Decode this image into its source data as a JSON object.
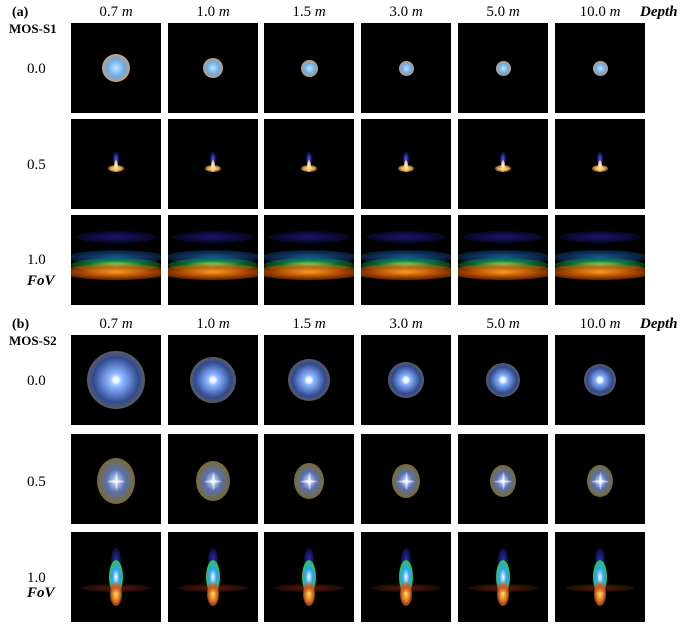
{
  "panels": [
    {
      "label": "(a)",
      "system": "MOS-S1",
      "depth_label": "Depth",
      "depths": [
        {
          "value": "0.7",
          "unit": "m"
        },
        {
          "value": "1.0",
          "unit": "m"
        },
        {
          "value": "1.5",
          "unit": "m"
        },
        {
          "value": "3.0",
          "unit": "m"
        },
        {
          "value": "5.0",
          "unit": "m"
        },
        {
          "value": "10.0",
          "unit": "m"
        }
      ],
      "fov_values": [
        "0.0",
        "0.5",
        "1.0"
      ],
      "fov_label": "FoV"
    },
    {
      "label": "(b)",
      "system": "MOS-S2",
      "depth_label": "Depth",
      "depths": [
        {
          "value": "0.7",
          "unit": "m"
        },
        {
          "value": "1.0",
          "unit": "m"
        },
        {
          "value": "1.5",
          "unit": "m"
        },
        {
          "value": "3.0",
          "unit": "m"
        },
        {
          "value": "5.0",
          "unit": "m"
        },
        {
          "value": "10.0",
          "unit": "m"
        }
      ],
      "fov_values": [
        "0.0",
        "0.5",
        "1.0"
      ],
      "fov_label": "FoV"
    }
  ]
}
